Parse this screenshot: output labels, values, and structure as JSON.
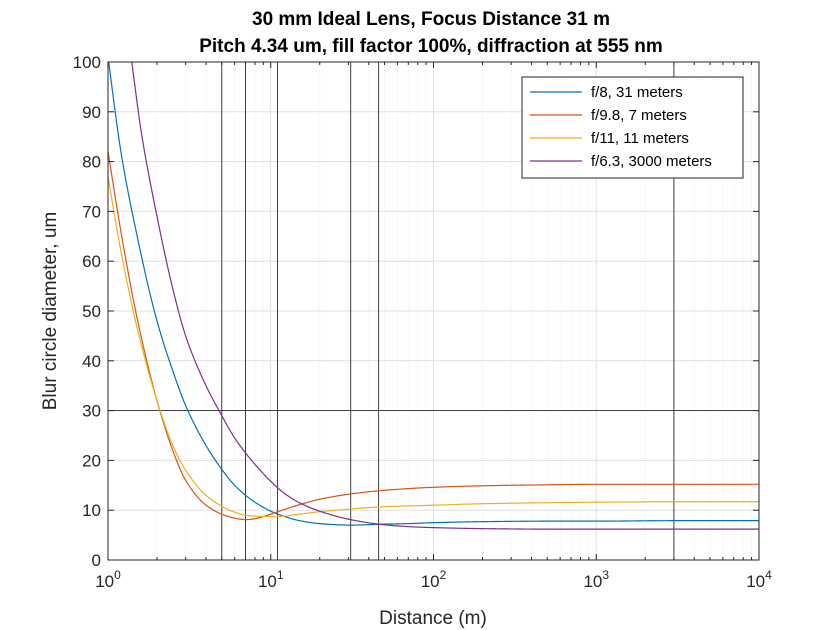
{
  "chart_data": {
    "type": "line",
    "title": "30 mm Ideal Lens, Focus Distance 31 m",
    "subtitle": "Pitch 4.34 um, fill factor 100%, diffraction at 555 nm",
    "xlabel": "Distance (m)",
    "ylabel": "Blur circle diameter, um",
    "xscale": "log",
    "xlim": [
      1,
      10000
    ],
    "ylim": [
      0,
      100
    ],
    "xticks": [
      {
        "base": "10",
        "exp": "0",
        "value": 1
      },
      {
        "base": "10",
        "exp": "1",
        "value": 10
      },
      {
        "base": "10",
        "exp": "2",
        "value": 100
      },
      {
        "base": "10",
        "exp": "3",
        "value": 1000
      },
      {
        "base": "10",
        "exp": "4",
        "value": 10000
      }
    ],
    "yticks": [
      "0",
      "10",
      "20",
      "30",
      "40",
      "50",
      "60",
      "70",
      "80",
      "90",
      "100"
    ],
    "grid": true,
    "legend_position": "top-right",
    "reference_lines": {
      "horizontal": [
        30
      ],
      "vertical": [
        5,
        7,
        11,
        31,
        46,
        3000
      ]
    },
    "series": [
      {
        "name": "f/8, 31 meters",
        "color": "#0072BD",
        "x": [
          1,
          1.2,
          1.5,
          2,
          2.5,
          3,
          4,
          5,
          6,
          7,
          8,
          10,
          12,
          15,
          20,
          25,
          31,
          40,
          50,
          70,
          100,
          200,
          500,
          1000,
          3000,
          10000
        ],
        "y": [
          101,
          82,
          65.5,
          48,
          38,
          31,
          23,
          18.2,
          15,
          13,
          11.6,
          9.8,
          8.8,
          7.9,
          7.3,
          7.1,
          7.0,
          7.1,
          7.2,
          7.3,
          7.5,
          7.7,
          7.8,
          7.8,
          7.9,
          7.9
        ]
      },
      {
        "name": "f/9.8, 7 meters",
        "color": "#D95319",
        "x": [
          1,
          1.2,
          1.5,
          2,
          2.5,
          3,
          4,
          5,
          6,
          7,
          8,
          10,
          12,
          15,
          20,
          30,
          50,
          100,
          200,
          500,
          1000,
          3000,
          10000
        ],
        "y": [
          82,
          66,
          49,
          32,
          22,
          16,
          11,
          9.2,
          8.4,
          8.1,
          8.3,
          9.2,
          10.1,
          11.1,
          12.2,
          13.2,
          14.0,
          14.6,
          14.9,
          15.1,
          15.2,
          15.2,
          15.2
        ]
      },
      {
        "name": "f/11, 11 meters",
        "color": "#EDB120",
        "x": [
          1,
          1.2,
          1.5,
          2,
          2.5,
          3,
          4,
          5,
          6,
          7,
          8,
          10,
          11,
          12,
          15,
          20,
          30,
          50,
          100,
          200,
          500,
          1000,
          3000,
          10000
        ],
        "y": [
          77,
          62,
          47,
          32,
          23,
          18,
          13,
          10.8,
          9.6,
          9.0,
          8.8,
          8.7,
          8.7,
          8.8,
          9.2,
          9.7,
          10.2,
          10.7,
          11.0,
          11.3,
          11.5,
          11.6,
          11.7,
          11.7
        ]
      },
      {
        "name": "f/6.3, 3000 meters",
        "color": "#7E2F8E",
        "x": [
          1.4,
          1.6,
          2,
          2.5,
          3,
          4,
          5,
          6,
          7,
          8,
          10,
          12,
          15,
          20,
          30,
          46,
          70,
          100,
          200,
          500,
          1000,
          3000,
          10000
        ],
        "y": [
          100,
          86,
          69,
          54.5,
          45,
          35,
          29,
          24.5,
          21.5,
          19.2,
          15.8,
          13.5,
          11.5,
          9.8,
          8.2,
          7.2,
          6.7,
          6.5,
          6.3,
          6.2,
          6.2,
          6.2,
          6.2
        ]
      }
    ]
  }
}
